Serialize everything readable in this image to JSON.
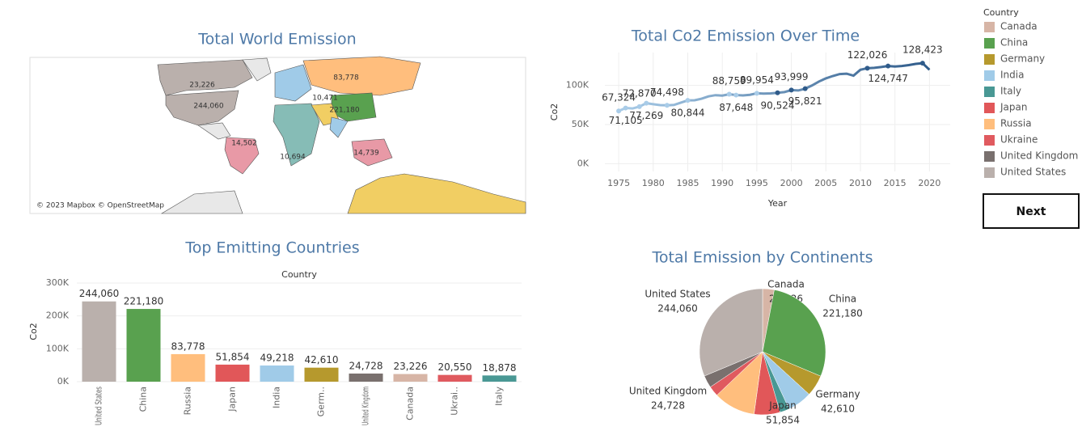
{
  "chart_data": [
    {
      "type": "map",
      "title": "Total World Emission",
      "attribution": "© 2023 Mapbox © OpenStreetMap",
      "values": [
        23226,
        244060,
        83778,
        221180,
        14502,
        14739,
        10694,
        10471
      ],
      "value_labels": [
        "23,226",
        "244,060",
        "83,778",
        "221,180",
        "14,502",
        "14,739",
        "10,694",
        "10,471"
      ]
    },
    {
      "type": "line",
      "title": "Total Co2 Emission Over Time",
      "x_label": "Year",
      "y_label": "Co2",
      "x": [
        1975,
        1976,
        1977,
        1978,
        1979,
        1980,
        1981,
        1982,
        1983,
        1984,
        1985,
        1986,
        1987,
        1988,
        1989,
        1990,
        1991,
        1992,
        1993,
        1994,
        1995,
        1996,
        1997,
        1998,
        1999,
        2000,
        2001,
        2002,
        2003,
        2004,
        2005,
        2006,
        2007,
        2008,
        2009,
        2010,
        2011,
        2012,
        2013,
        2014,
        2015,
        2016,
        2017,
        2018,
        2019,
        2020
      ],
      "series": [
        {
          "name": "Co2",
          "color_range": [
            "#a9cce8",
            "#2f5b8a"
          ],
          "values": [
            67324,
            71105,
            70500,
            72870,
            77269,
            76000,
            74800,
            74498,
            75000,
            78000,
            80844,
            81000,
            83000,
            86000,
            87500,
            87000,
            88759,
            87648,
            87200,
            88000,
            89954,
            89500,
            89800,
            90524,
            91500,
            93999,
            93500,
            95821,
            100000,
            105000,
            109000,
            112000,
            114500,
            115000,
            112500,
            120000,
            122026,
            122500,
            123500,
            124747,
            124200,
            124800,
            126000,
            127500,
            128423,
            120000
          ],
          "value_labels": [
            "67,324",
            "71,105",
            null,
            "72,870",
            "77,269",
            null,
            null,
            "74,498",
            null,
            null,
            "80,844",
            null,
            null,
            null,
            null,
            null,
            "88,759",
            "87,648",
            null,
            null,
            "89,954",
            null,
            null,
            "90,524",
            null,
            "93,999",
            null,
            "95,821",
            null,
            null,
            null,
            null,
            null,
            null,
            null,
            null,
            "122,026",
            null,
            null,
            "124,747",
            null,
            null,
            null,
            null,
            "128,423",
            null
          ]
        }
      ],
      "xlim": [
        1973,
        2023
      ],
      "xticks": [
        1975,
        1980,
        1985,
        1990,
        1995,
        2000,
        2005,
        2010,
        2015,
        2020
      ],
      "ylim": [
        -10000,
        142000
      ],
      "yticks": [
        {
          "value": 0,
          "label": "0K"
        },
        {
          "value": 50000,
          "label": "50K"
        },
        {
          "value": 100000,
          "label": "100K"
        }
      ],
      "grid": true
    },
    {
      "type": "bar",
      "title": "Top Emitting Countries",
      "header": "Country",
      "y_label": "Co2",
      "categories": [
        "United States",
        "China",
        "Russia",
        "Japan",
        "India",
        "Germ..",
        "United Kingdom",
        "Canada",
        "Ukrai..",
        "Italy"
      ],
      "values": [
        244060,
        221180,
        83778,
        51854,
        49218,
        42610,
        24728,
        23226,
        20550,
        18878
      ],
      "value_labels": [
        "244,060",
        "221,180",
        "83,778",
        "51,854",
        "49,218",
        "42,610",
        "24,728",
        "23,226",
        "20,550",
        "18,878"
      ],
      "colors": [
        "#bab0ac",
        "#59a14f",
        "#ffbe7d",
        "#e15759",
        "#a0cbe8",
        "#b6992d",
        "#79706e",
        "#d7b5a6",
        "#e05a5f",
        "#499894"
      ],
      "ylim": [
        0,
        300000
      ],
      "yticks": [
        {
          "value": 0,
          "label": "0K"
        },
        {
          "value": 100000,
          "label": "100K"
        },
        {
          "value": 200000,
          "label": "200K"
        },
        {
          "value": 300000,
          "label": "300K"
        }
      ],
      "grid": true
    },
    {
      "type": "pie",
      "title": "Total Emission by Continents",
      "categories": [
        "Canada",
        "China",
        "Germany",
        null,
        null,
        "Japan",
        null,
        null,
        "United Kingdom",
        "United States"
      ],
      "values": [
        23226,
        221180,
        42610,
        49218,
        18878,
        51854,
        83778,
        20550,
        24728,
        244060
      ],
      "value_labels": [
        "23,226",
        "221,180",
        "42,610",
        null,
        null,
        "51,854",
        null,
        null,
        "24,728",
        "244,060"
      ],
      "colors": [
        "#d7b5a6",
        "#59a14f",
        "#b6992d",
        "#a0cbe8",
        "#499894",
        "#e15759",
        "#ffbe7d",
        "#e05a5f",
        "#79706e",
        "#bab0ac"
      ]
    }
  ],
  "legend": {
    "title": "Country",
    "items": [
      {
        "name": "Canada",
        "color": "#d7b5a6"
      },
      {
        "name": "China",
        "color": "#59a14f"
      },
      {
        "name": "Germany",
        "color": "#b6992d"
      },
      {
        "name": "India",
        "color": "#a0cbe8"
      },
      {
        "name": "Italy",
        "color": "#499894"
      },
      {
        "name": "Japan",
        "color": "#e15759"
      },
      {
        "name": "Russia",
        "color": "#ffbe7d"
      },
      {
        "name": "Ukraine",
        "color": "#e05a5f"
      },
      {
        "name": "United Kingdom",
        "color": "#79706e"
      },
      {
        "name": "United States",
        "color": "#bab0ac"
      }
    ]
  },
  "button": "Next"
}
